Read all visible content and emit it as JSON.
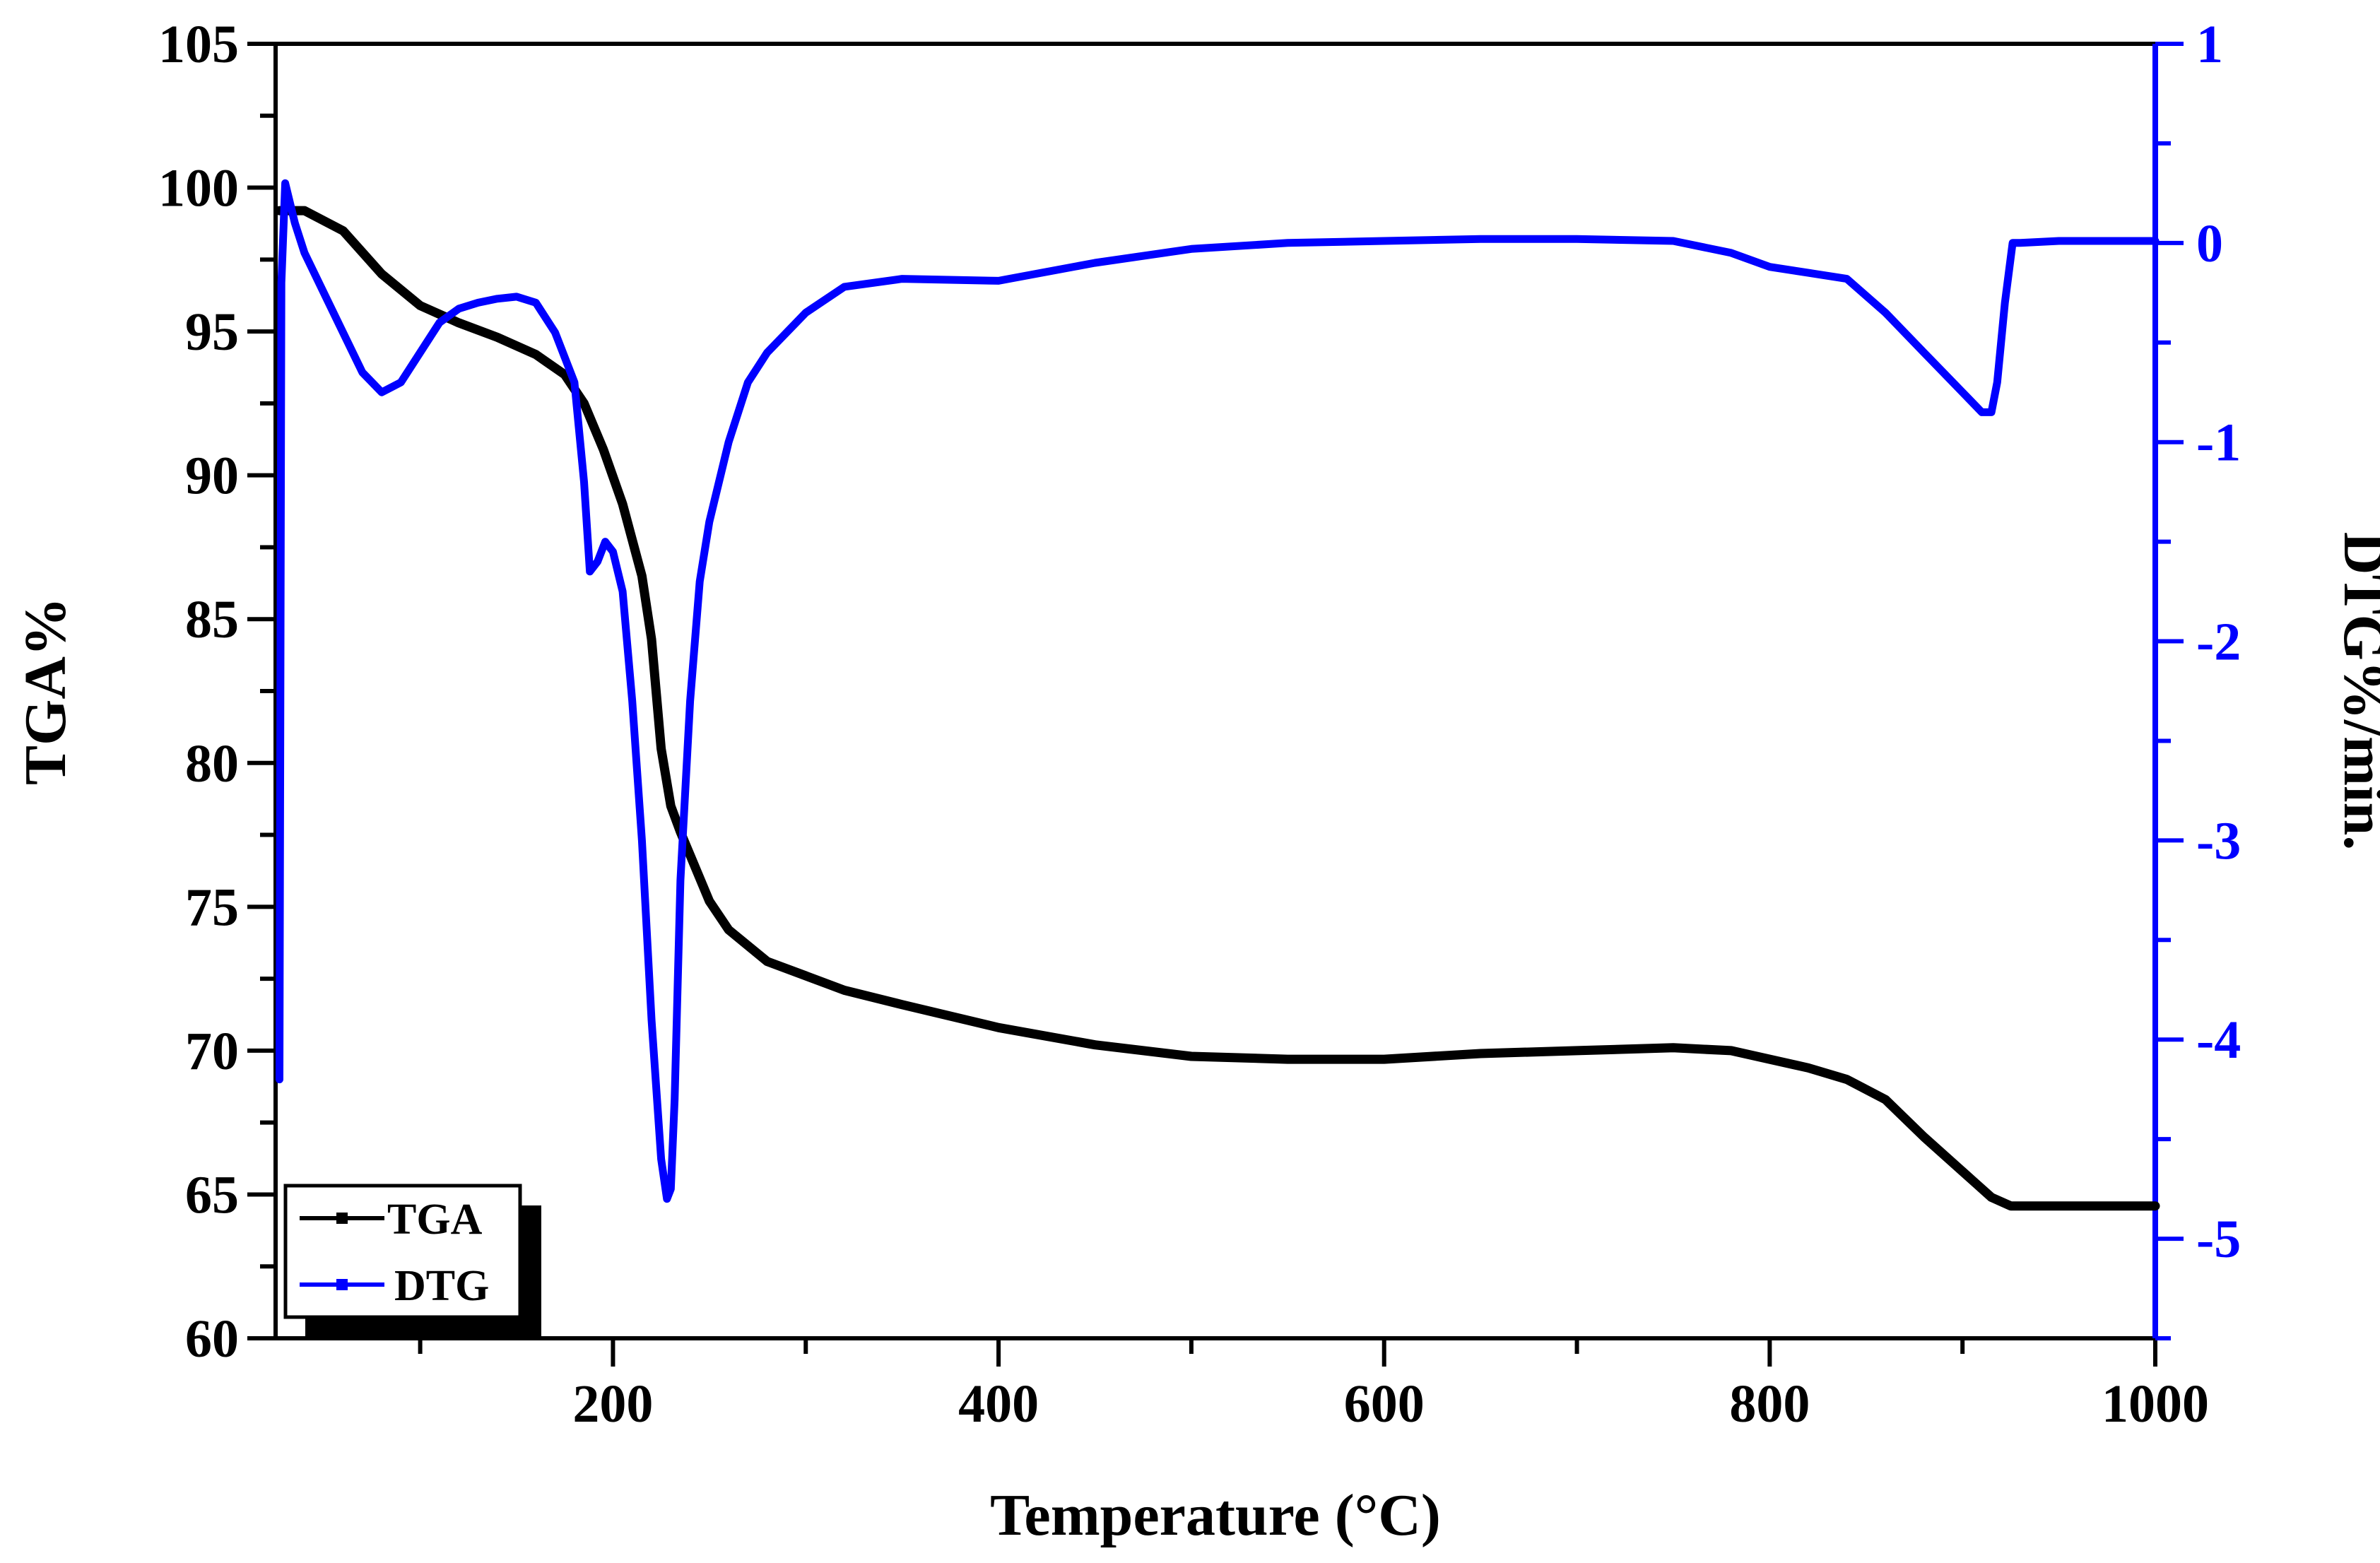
{
  "chart_data": {
    "type": "line",
    "title": "",
    "xlabel": "Temperature (°C)",
    "ylabel": "TGA%",
    "y2label": "DTG%/min.",
    "xlim": [
      25,
      1000
    ],
    "ylim": [
      60,
      105
    ],
    "y2lim": [
      -5.5,
      1
    ],
    "x_ticks": [
      200,
      400,
      600,
      800,
      1000
    ],
    "y_ticks": [
      60,
      65,
      70,
      75,
      80,
      85,
      90,
      95,
      100,
      105
    ],
    "y2_ticks": [
      -5,
      -4,
      -3,
      -2,
      -1,
      0,
      1
    ],
    "legend_position": "bottom-left",
    "colors": {
      "TGA": "#000000",
      "DTG": "#0000ff",
      "axis": "#000000",
      "axis2": "#0000ff"
    },
    "series": [
      {
        "name": "TGA",
        "axis": "left",
        "x": [
          27,
          30,
          40,
          60,
          80,
          100,
          120,
          140,
          160,
          175,
          185,
          195,
          205,
          215,
          220,
          225,
          230,
          235,
          240,
          250,
          260,
          280,
          300,
          320,
          350,
          400,
          450,
          500,
          550,
          600,
          650,
          700,
          750,
          780,
          800,
          820,
          840,
          860,
          880,
          900,
          915,
          925,
          940,
          970,
          1000
        ],
        "y": [
          99.2,
          99.2,
          99.2,
          98.5,
          97.0,
          95.9,
          95.3,
          94.8,
          94.2,
          93.5,
          92.5,
          90.9,
          89.0,
          86.5,
          84.3,
          80.5,
          78.5,
          77.6,
          76.8,
          75.2,
          74.2,
          73.1,
          72.6,
          72.1,
          71.6,
          70.8,
          70.2,
          69.8,
          69.7,
          69.7,
          69.9,
          70.0,
          70.1,
          70.0,
          69.7,
          69.4,
          69.0,
          68.3,
          67.0,
          65.8,
          64.9,
          64.6,
          64.6,
          64.6,
          64.6
        ]
      },
      {
        "name": "DTG",
        "axis": "right",
        "x": [
          27,
          28,
          30,
          35,
          40,
          50,
          60,
          70,
          80,
          90,
          100,
          110,
          120,
          130,
          140,
          150,
          160,
          170,
          180,
          185,
          188,
          192,
          196,
          200,
          205,
          210,
          215,
          220,
          225,
          228,
          230,
          232,
          235,
          240,
          245,
          250,
          260,
          270,
          280,
          300,
          320,
          350,
          400,
          450,
          500,
          550,
          600,
          650,
          700,
          750,
          780,
          800,
          820,
          840,
          860,
          880,
          900,
          910,
          915,
          918,
          922,
          926,
          930,
          950,
          1000
        ],
        "y": [
          -4.2,
          -0.2,
          0.3,
          0.1,
          -0.05,
          -0.25,
          -0.45,
          -0.65,
          -0.75,
          -0.7,
          -0.55,
          -0.4,
          -0.33,
          -0.3,
          -0.28,
          -0.27,
          -0.3,
          -0.45,
          -0.7,
          -1.2,
          -1.65,
          -1.6,
          -1.5,
          -1.55,
          -1.75,
          -2.3,
          -3.0,
          -3.9,
          -4.6,
          -4.8,
          -4.75,
          -4.3,
          -3.2,
          -2.3,
          -1.7,
          -1.4,
          -1.0,
          -0.7,
          -0.55,
          -0.35,
          -0.22,
          -0.18,
          -0.19,
          -0.1,
          -0.03,
          0.0,
          0.01,
          0.02,
          0.02,
          0.01,
          -0.05,
          -0.12,
          -0.15,
          -0.18,
          -0.35,
          -0.55,
          -0.75,
          -0.85,
          -0.85,
          -0.7,
          -0.3,
          0.0,
          0.0,
          0.01,
          0.01
        ]
      }
    ]
  }
}
